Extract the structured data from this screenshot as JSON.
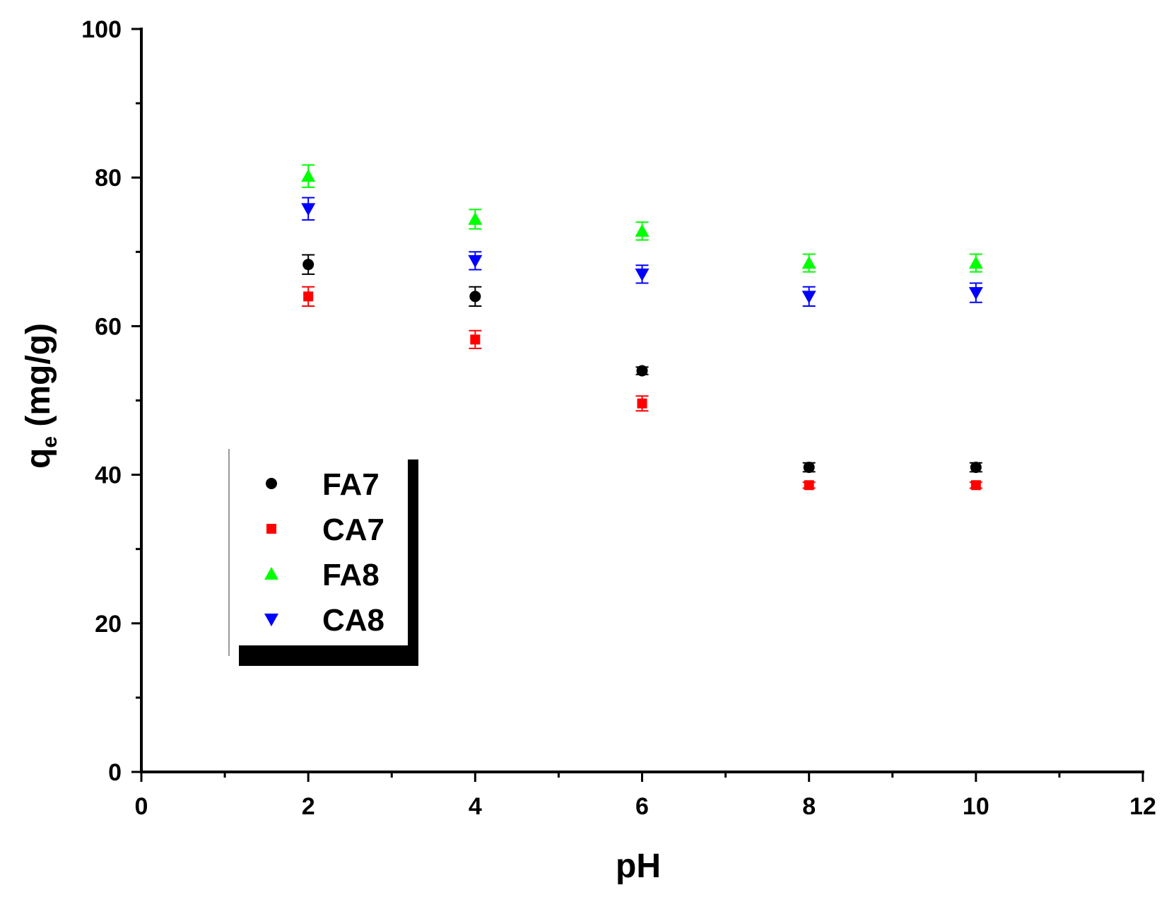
{
  "chart_data": {
    "type": "scatter",
    "xlabel": "pH",
    "ylabel": "q",
    "ylabel_subscript": "e",
    "ylabel_unit": " (mg/g)",
    "xlim": [
      0,
      12
    ],
    "ylim": [
      0,
      100
    ],
    "x_ticks": [
      0,
      2,
      4,
      6,
      8,
      10,
      12
    ],
    "y_ticks": [
      0,
      20,
      40,
      60,
      80,
      100
    ],
    "x_minor_step": 1,
    "y_minor_step": 10,
    "grid": false,
    "legend_position": "lower-left",
    "series": [
      {
        "name": "FA7",
        "color": "#000000",
        "marker": "circle",
        "x": [
          2,
          4,
          6,
          8,
          10
        ],
        "y": [
          68.3,
          64.0,
          54.0,
          41.0,
          41.0
        ],
        "err": [
          1.3,
          1.3,
          0.5,
          0.6,
          0.6
        ]
      },
      {
        "name": "CA7",
        "color": "#ff0000",
        "marker": "square",
        "x": [
          2,
          4,
          6,
          8,
          10
        ],
        "y": [
          64.0,
          58.2,
          49.6,
          38.6,
          38.6
        ],
        "err": [
          1.3,
          1.2,
          1.0,
          0.4,
          0.4
        ]
      },
      {
        "name": "FA8",
        "color": "#00ff00",
        "marker": "triangle-up",
        "x": [
          2,
          4,
          6,
          8,
          10
        ],
        "y": [
          80.2,
          74.4,
          72.8,
          68.5,
          68.5
        ],
        "err": [
          1.5,
          1.3,
          1.2,
          1.2,
          1.2
        ]
      },
      {
        "name": "CA8",
        "color": "#0000ff",
        "marker": "triangle-down",
        "x": [
          2,
          4,
          6,
          8,
          10
        ],
        "y": [
          75.8,
          68.8,
          67.0,
          64.0,
          64.5
        ],
        "err": [
          1.5,
          1.2,
          1.2,
          1.3,
          1.3
        ]
      }
    ]
  }
}
